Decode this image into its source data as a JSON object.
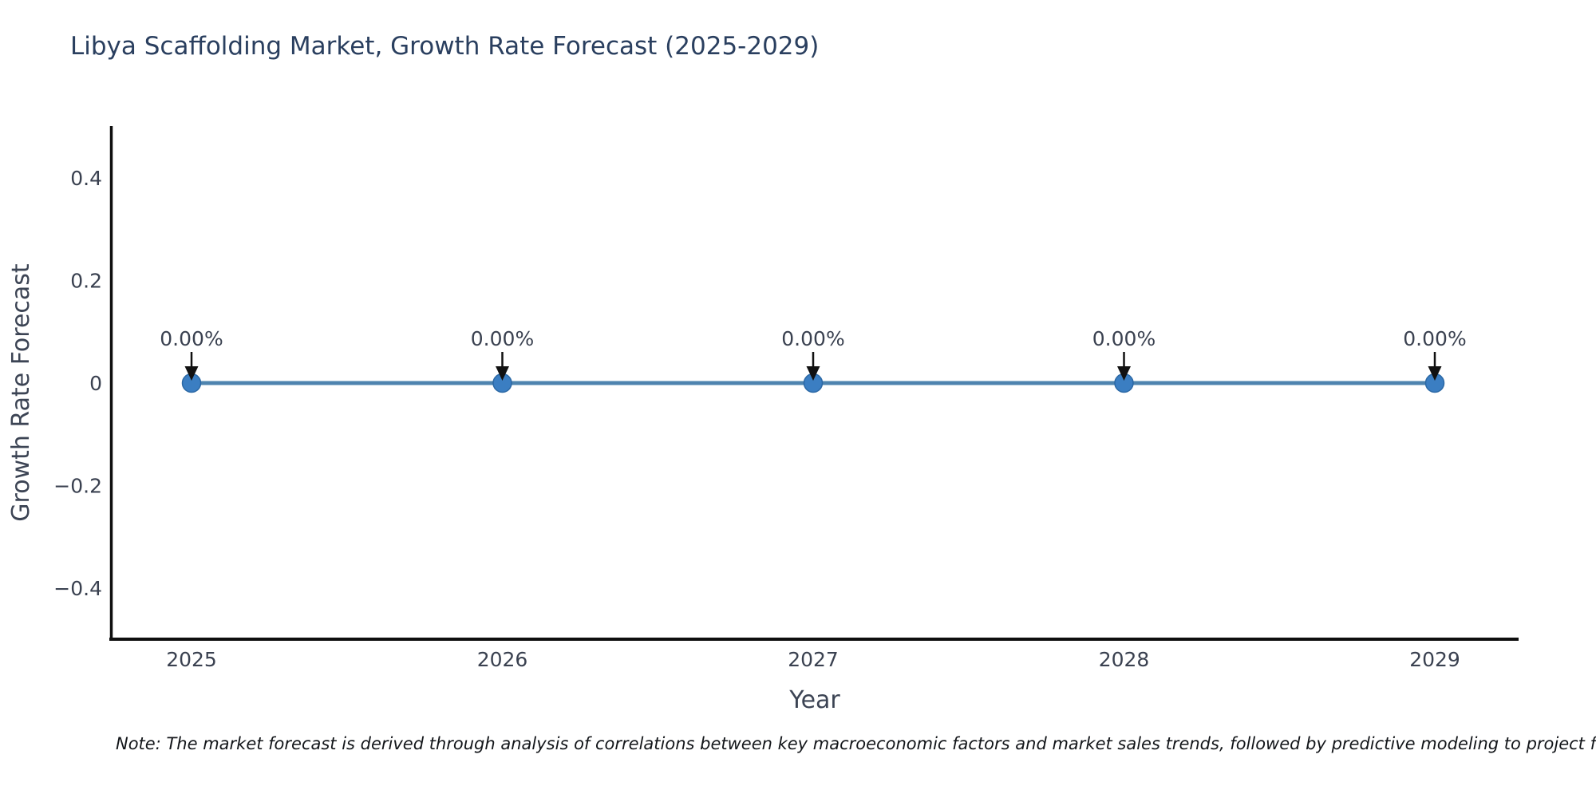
{
  "header": {
    "title": "Libya Scaffolding Market, Growth Rate Forecast (2025-2029)"
  },
  "footer": {
    "note": "Note: The market forecast is derived through analysis of correlations between key macroeconomic factors and market sales trends, followed by predictive modeling to project future sales"
  },
  "colors": {
    "title_text": "#2a3f5f",
    "axis_line": "#0e0e0e",
    "tick_text": "#3a4150",
    "line": "#4e84af",
    "marker_fill": "#3b7ec2",
    "marker_edge": "#2b68a5",
    "arrow": "#111111",
    "background": "#ffffff"
  },
  "chart_data": {
    "type": "line",
    "title": "Libya Scaffolding Market, Growth Rate Forecast (2025-2029)",
    "xlabel": "Year",
    "ylabel": "Growth Rate Forecast",
    "categories": [
      "2025",
      "2026",
      "2027",
      "2028",
      "2029"
    ],
    "series": [
      {
        "name": "Growth Rate Forecast",
        "values": [
          0,
          0,
          0,
          0,
          0
        ],
        "point_labels": [
          "0.00%",
          "0.00%",
          "0.00%",
          "0.00%",
          "0.00%"
        ]
      }
    ],
    "ylim": [
      -0.5,
      0.5
    ],
    "y_ticks": [
      0.4,
      0.2,
      0,
      -0.2,
      -0.4
    ],
    "y_tick_labels": [
      "0.4",
      "0.2",
      "0",
      "−0.2",
      "−0.4"
    ],
    "grid": false,
    "legend_position": "none",
    "annotation_style": "value labels with downward arrows onto each point"
  }
}
